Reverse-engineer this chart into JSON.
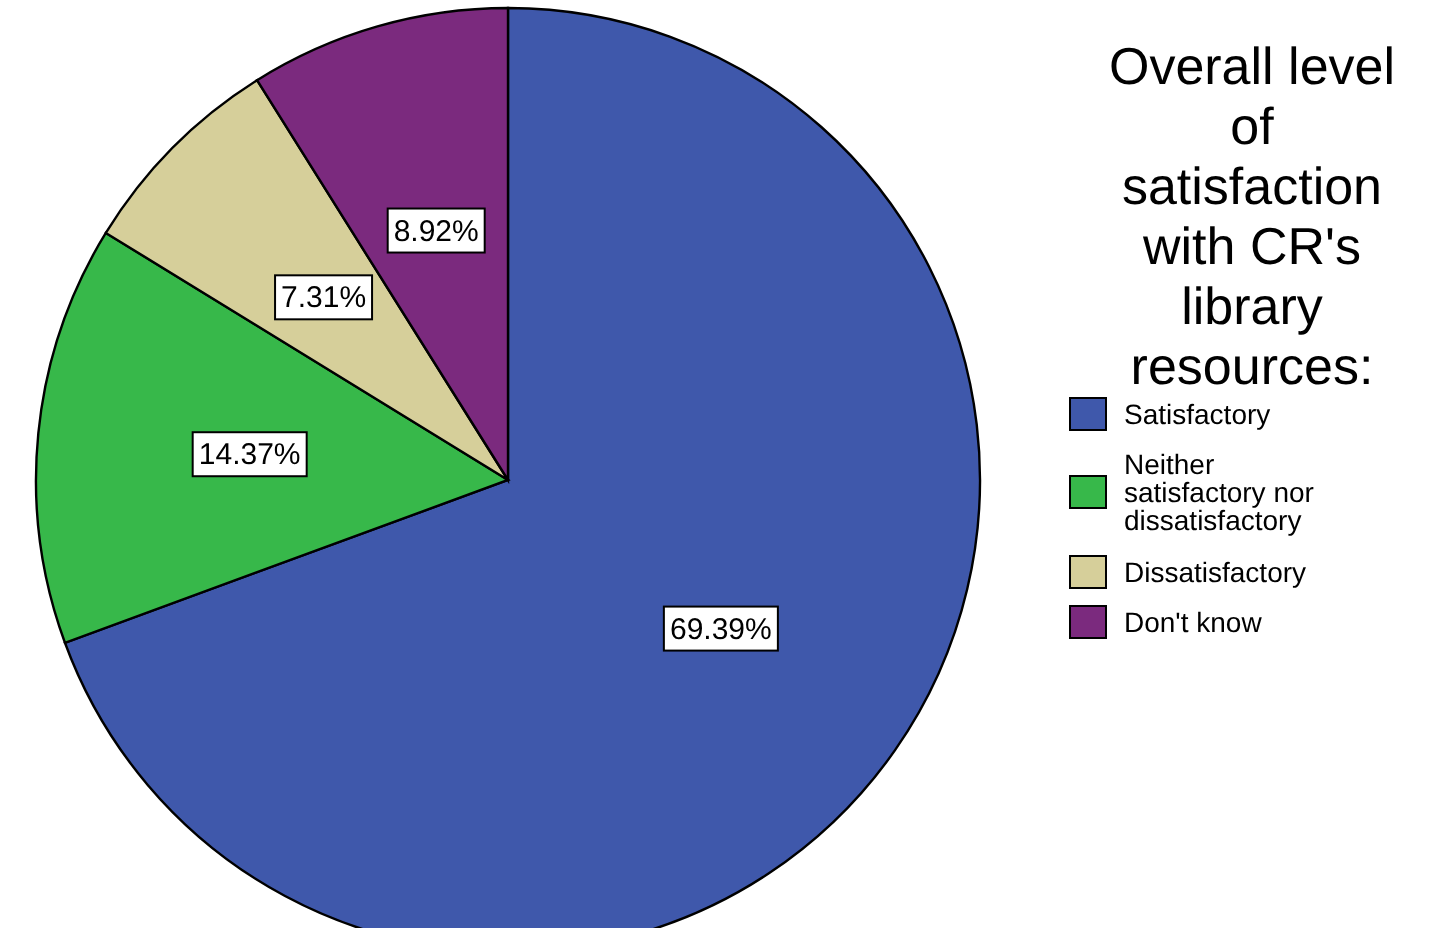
{
  "chart_data": {
    "type": "pie",
    "legend_title": "Overall level of satisfaction with CR's library resources:",
    "categories": [
      "Satisfactory",
      "Neither satisfactory nor dissatisfactory",
      "Dissatisfactory",
      "Don't know"
    ],
    "values": [
      69.39,
      14.37,
      7.31,
      8.92
    ],
    "colors": [
      "#3f58ab",
      "#37b84a",
      "#d6cf9a",
      "#7b2a7e"
    ],
    "value_labels": [
      "69.39%",
      "14.37%",
      "7.31%",
      "8.92%"
    ],
    "legend": "right"
  }
}
